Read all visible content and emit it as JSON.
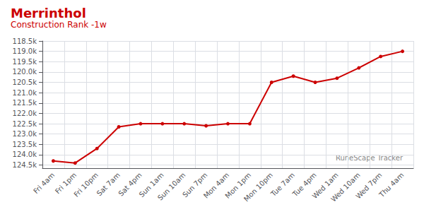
{
  "chart_data": {
    "type": "line",
    "title": "Merrinthol",
    "subtitle": "Construction Rank -1w",
    "annotations": [
      "RuneScape Tracker"
    ],
    "categories": [
      "Fri 4am",
      "Fri 1pm",
      "Fri 10pm",
      "Sat 7am",
      "Sat 4pm",
      "Sun 1am",
      "Sun 10am",
      "Sun 7pm",
      "Mon 4am",
      "Mon 1pm",
      "Mon 10pm",
      "Tue 7am",
      "Tue 4pm",
      "Wed 1am",
      "Wed 10am",
      "Wed 7pm",
      "Thu 4am"
    ],
    "values": [
      124300,
      124400,
      123700,
      122650,
      122500,
      122500,
      122500,
      122600,
      122500,
      122500,
      120500,
      120200,
      120500,
      120300,
      119800,
      119250,
      119000
    ],
    "color": "#cc0000",
    "marker": "circle",
    "ylim": [
      124650,
      118500
    ],
    "yticks": [
      {
        "value": 118500,
        "label": "118.5k"
      },
      {
        "value": 119000,
        "label": "119.0k"
      },
      {
        "value": 119500,
        "label": "119.5k"
      },
      {
        "value": 120000,
        "label": "120.0k"
      },
      {
        "value": 120500,
        "label": "120.5k"
      },
      {
        "value": 121000,
        "label": "121.0k"
      },
      {
        "value": 121500,
        "label": "121.5k"
      },
      {
        "value": 122000,
        "label": "122.0k"
      },
      {
        "value": 122500,
        "label": "122.5k"
      },
      {
        "value": 123000,
        "label": "123.0k"
      },
      {
        "value": 123500,
        "label": "123.5k"
      },
      {
        "value": 124000,
        "label": "124.0k"
      },
      {
        "value": 124500,
        "label": "124.5k"
      }
    ],
    "grid": true
  }
}
